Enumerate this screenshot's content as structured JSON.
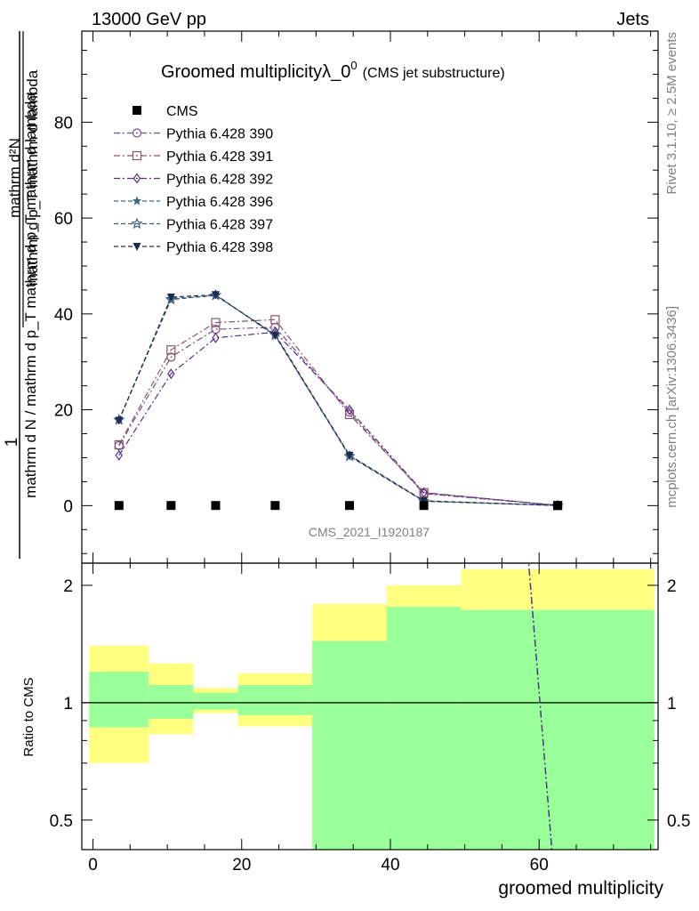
{
  "header": {
    "left": "13000 GeV pp",
    "right": "Jets",
    "side_top": "Rivet 3.1.10, ≥ 2.5M events",
    "side_bottom": "mcplots.cern.ch [arXiv:1306.3436]"
  },
  "colors": {
    "yellow_band": "#ffff80",
    "green_band": "#99ff99",
    "cms": "#000000",
    "s390": "#7b4c86",
    "s391": "#8a5566",
    "s392": "#55308a",
    "s396": "#406680",
    "s397": "#3a5a78",
    "s398": "#1a2a50"
  },
  "chart_data": [
    {
      "type": "line",
      "title": "Groomed multiplicityλ_0",
      "title_superscript": "0",
      "subtitle": "(CMS jet substructure)",
      "watermark": "CMS_2021_I1920187",
      "xlabel": "groomed multiplicity",
      "ylabel_numerator": "1",
      "ylabel_denominator": "mathrm d N / mathrm d p_T mathrm d p_T mathrm d lambda",
      "ylabel_frac_numerator": "mathrm d²N",
      "ylabel_frac_denominator": "mathrm d p_T mathrm d lambda",
      "xlim": [
        -1.5,
        76
      ],
      "ylim": [
        -12,
        99
      ],
      "xticks": [
        0,
        20,
        40,
        60
      ],
      "yticks": [
        0,
        20,
        40,
        60,
        80
      ],
      "series": [
        {
          "name": "CMS",
          "marker": "filled-square",
          "x": [
            3.5,
            10.5,
            16.5,
            24.5,
            34.5,
            44.5,
            62.5
          ],
          "y": [
            0.03,
            0.03,
            0.03,
            0.03,
            0.03,
            0.03,
            0.03
          ]
        },
        {
          "name": "Pythia 6.428 390",
          "marker": "open-circle",
          "dash": "dashdot",
          "x": [
            3.5,
            10.5,
            16.5,
            24.5,
            34.5,
            44.5,
            62.5
          ],
          "y": [
            12.5,
            31,
            36.8,
            37.2,
            19.5,
            2.5,
            0.05
          ]
        },
        {
          "name": "Pythia 6.428 391",
          "marker": "open-square",
          "dash": "dashdot",
          "x": [
            3.5,
            10.5,
            16.5,
            24.5,
            34.5,
            44.5,
            62.5
          ],
          "y": [
            12.7,
            32.5,
            38.2,
            38.8,
            19,
            2.7,
            0.05
          ]
        },
        {
          "name": "Pythia 6.428 392",
          "marker": "open-diamond",
          "dash": "dashdot",
          "x": [
            3.5,
            10.5,
            16.5,
            24.5,
            34.5,
            44.5,
            62.5
          ],
          "y": [
            10.5,
            27.5,
            35,
            36.2,
            20,
            2.7,
            0.05
          ]
        },
        {
          "name": "Pythia 6.428 396",
          "marker": "filled-star",
          "dash": "dashed",
          "x": [
            3.5,
            10.5,
            16.5,
            24.5,
            34.5,
            44.5,
            62.5
          ],
          "y": [
            17.8,
            43.2,
            43.8,
            35.8,
            10.5,
            1.0,
            0.02
          ]
        },
        {
          "name": "Pythia 6.428 397",
          "marker": "open-star",
          "dash": "dashed",
          "x": [
            3.5,
            10.5,
            16.5,
            24.5,
            34.5,
            44.5,
            62.5
          ],
          "y": [
            17.9,
            43.0,
            43.9,
            35.6,
            10.3,
            0.9,
            0.02
          ]
        },
        {
          "name": "Pythia 6.428 398",
          "marker": "filled-triangle-down",
          "dash": "dashed",
          "x": [
            3.5,
            10.5,
            16.5,
            24.5,
            34.5,
            44.5,
            62.5
          ],
          "y": [
            17.8,
            43.5,
            44.0,
            35.5,
            10.5,
            1.0,
            0.02
          ]
        }
      ]
    },
    {
      "type": "area",
      "ylabel": "Ratio to CMS",
      "xlabel": "groomed multiplicity",
      "scale": "log",
      "ylim": [
        0.42,
        2.28
      ],
      "yticks": [
        0.5,
        1,
        2
      ],
      "ytick_labels": [
        "0.5",
        "1",
        "2"
      ],
      "reference_line": 1,
      "bins": [
        {
          "x0": -0.5,
          "x1": 7.5,
          "green": [
            0.865,
            1.2
          ],
          "yellow": [
            0.7,
            1.4
          ]
        },
        {
          "x0": 7.5,
          "x1": 13.5,
          "green": [
            0.91,
            1.11
          ],
          "yellow": [
            0.83,
            1.26
          ]
        },
        {
          "x0": 13.5,
          "x1": 19.5,
          "green": [
            0.96,
            1.06
          ],
          "yellow": [
            0.94,
            1.09
          ]
        },
        {
          "x0": 19.5,
          "x1": 29.5,
          "green": [
            0.93,
            1.11
          ],
          "yellow": [
            0.87,
            1.19
          ]
        },
        {
          "x0": 29.5,
          "x1": 39.5,
          "green": [
            0.4,
            1.44
          ],
          "yellow": [
            0.4,
            1.79
          ]
        },
        {
          "x0": 39.5,
          "x1": 49.5,
          "green": [
            0.4,
            1.76
          ],
          "yellow": [
            0.4,
            2.0
          ]
        },
        {
          "x0": 49.5,
          "x1": 75.5,
          "green": [
            0.4,
            1.73
          ],
          "yellow": [
            0.4,
            2.2
          ]
        }
      ],
      "overlay_line": {
        "name": "Pythia 6.428 392 ratio",
        "x": [
          58.5,
          61.8
        ],
        "y": [
          2.4,
          0.4
        ]
      }
    }
  ]
}
